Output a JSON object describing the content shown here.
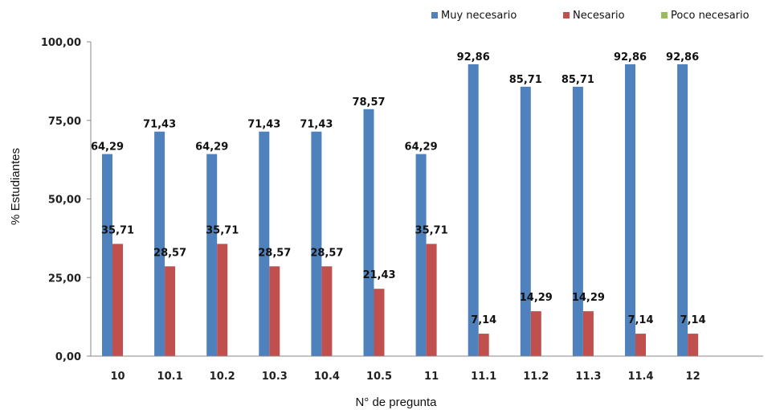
{
  "chart_data": {
    "type": "bar",
    "xlabel": "N° de pregunta",
    "ylabel": "% Estudiantes",
    "ylim": [
      0,
      100
    ],
    "yticks": [
      "0,00",
      "25,00",
      "50,00",
      "75,00",
      "100,00"
    ],
    "legend_position": "top-right",
    "categories": [
      "10",
      "10.1",
      "10.2",
      "10.3",
      "10.4",
      "10.5",
      "11",
      "11.1",
      "11.2",
      "11.3",
      "11.4",
      "12"
    ],
    "series": [
      {
        "name": "Muy necesario",
        "color": "#4F81BD",
        "values": [
          64.29,
          71.43,
          64.29,
          71.43,
          71.43,
          78.57,
          64.29,
          92.86,
          85.71,
          85.71,
          92.86,
          92.86
        ],
        "labels": [
          "64,29",
          "71,43",
          "64,29",
          "71,43",
          "71,43",
          "78,57",
          "64,29",
          "92,86",
          "85,71",
          "85,71",
          "92,86",
          "92,86"
        ]
      },
      {
        "name": "Necesario",
        "color": "#C0504D",
        "values": [
          35.71,
          28.57,
          35.71,
          28.57,
          28.57,
          21.43,
          35.71,
          7.14,
          14.29,
          14.29,
          7.14,
          7.14
        ],
        "labels": [
          "35,71",
          "28,57",
          "35,71",
          "28,57",
          "28,57",
          "21,43",
          "35,71",
          "7,14",
          "14,29",
          "14,29",
          "7,14",
          "7,14"
        ]
      },
      {
        "name": "Poco necesario",
        "color": "#9BBB59",
        "values": [
          0,
          0,
          0,
          0,
          0,
          0,
          0,
          0,
          0,
          0,
          0,
          0
        ],
        "labels": []
      }
    ]
  }
}
